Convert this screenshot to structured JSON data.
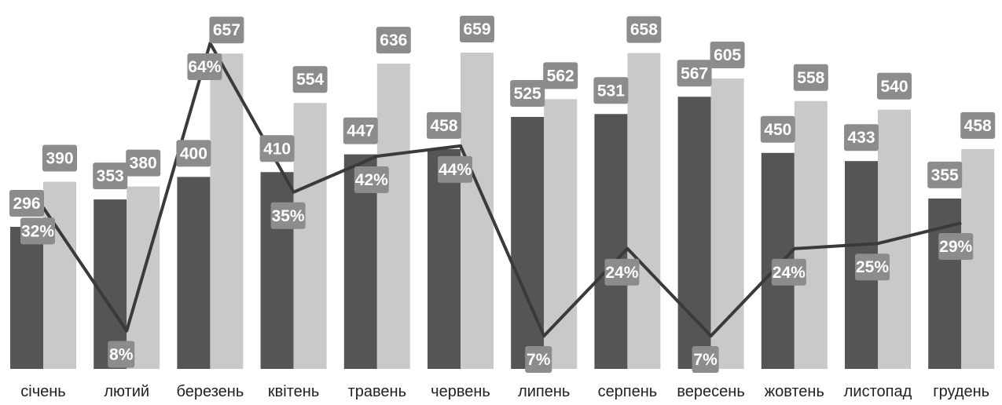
{
  "chart_data": {
    "type": "bar",
    "categories": [
      "січень",
      "лютий",
      "березень",
      "квітень",
      "травень",
      "червень",
      "липень",
      "серпень",
      "вересень",
      "жовтень",
      "листопад",
      "грудень"
    ],
    "series": [
      {
        "values": [
          296,
          353,
          400,
          410,
          447,
          458,
          525,
          531,
          567,
          450,
          433,
          355
        ],
        "color": "#555555"
      },
      {
        "values": [
          390,
          380,
          657,
          554,
          636,
          659,
          562,
          658,
          605,
          558,
          540,
          458
        ],
        "color": "#c9c9c9"
      }
    ],
    "line_series": {
      "values": [
        32,
        8,
        64,
        35,
        42,
        44,
        7,
        24,
        7,
        24,
        25,
        29
      ],
      "unit": "%",
      "color": "#3a3a3a"
    },
    "ylim": [
      0,
      680
    ],
    "line_ylim": [
      0,
      70
    ],
    "grid": false,
    "legend": "none",
    "label_color": "#8c8c8c"
  }
}
